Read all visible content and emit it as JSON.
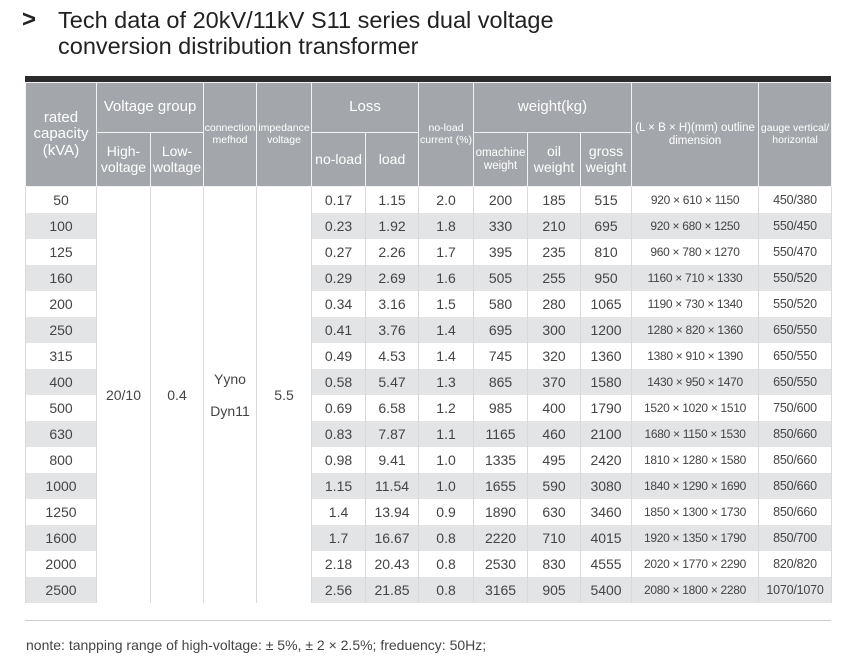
{
  "title": {
    "chevron": ">",
    "line1": "Tech data of 20kV/11kV S11 series dual voltage",
    "line2": "conversion distribution transformer"
  },
  "header": {
    "rated_capacity": "rated capacity (kVA)",
    "voltage_group": "Voltage group",
    "high_voltage": "High-voltage",
    "low_voltage": "Low-woltage",
    "connection_method": "connection mefhod",
    "impedance_voltage": "impedance voltage",
    "loss": "Loss",
    "no_load": "no-load",
    "load": "load",
    "no_load_current": "no-load current (%)",
    "weight": "weight(kg)",
    "machine_weight": "omachine weight",
    "oil_weight": "oil weight",
    "gross_weight": "gross weight",
    "outline_dimension": "(L × B × H)(mm) outline dimension",
    "gauge": "gauge vertical/ horizontal"
  },
  "merged": {
    "high_voltage": "20/10",
    "low_voltage": "0.4",
    "connection_1": "Yyno",
    "connection_2": "Dyn11",
    "impedance": "5.5"
  },
  "rows": [
    {
      "cap": "50",
      "nl": "0.17",
      "ld": "1.15",
      "cur": "2.0",
      "mw": "200",
      "ow": "185",
      "gw": "515",
      "dim": "920 × 610 × 1150",
      "gauge": "450/380"
    },
    {
      "cap": "100",
      "nl": "0.23",
      "ld": "1.92",
      "cur": "1.8",
      "mw": "330",
      "ow": "210",
      "gw": "695",
      "dim": "920 × 680 × 1250",
      "gauge": "550/450"
    },
    {
      "cap": "125",
      "nl": "0.27",
      "ld": "2.26",
      "cur": "1.7",
      "mw": "395",
      "ow": "235",
      "gw": "810",
      "dim": "960 × 780 × 1270",
      "gauge": "550/470"
    },
    {
      "cap": "160",
      "nl": "0.29",
      "ld": "2.69",
      "cur": "1.6",
      "mw": "505",
      "ow": "255",
      "gw": "950",
      "dim": "1160 × 710 × 1330",
      "gauge": "550/520"
    },
    {
      "cap": "200",
      "nl": "0.34",
      "ld": "3.16",
      "cur": "1.5",
      "mw": "580",
      "ow": "280",
      "gw": "1065",
      "dim": "1190 × 730 × 1340",
      "gauge": "550/520"
    },
    {
      "cap": "250",
      "nl": "0.41",
      "ld": "3.76",
      "cur": "1.4",
      "mw": "695",
      "ow": "300",
      "gw": "1200",
      "dim": "1280 × 820 × 1360",
      "gauge": "650/550"
    },
    {
      "cap": "315",
      "nl": "0.49",
      "ld": "4.53",
      "cur": "1.4",
      "mw": "745",
      "ow": "320",
      "gw": "1360",
      "dim": "1380 × 910 × 1390",
      "gauge": "650/550"
    },
    {
      "cap": "400",
      "nl": "0.58",
      "ld": "5.47",
      "cur": "1.3",
      "mw": "865",
      "ow": "370",
      "gw": "1580",
      "dim": "1430 × 950 × 1470",
      "gauge": "650/550"
    },
    {
      "cap": "500",
      "nl": "0.69",
      "ld": "6.58",
      "cur": "1.2",
      "mw": "985",
      "ow": "400",
      "gw": "1790",
      "dim": "1520 × 1020 × 1510",
      "gauge": "750/600"
    },
    {
      "cap": "630",
      "nl": "0.83",
      "ld": "7.87",
      "cur": "1.1",
      "mw": "1165",
      "ow": "460",
      "gw": "2100",
      "dim": "1680 × 1150 × 1530",
      "gauge": "850/660"
    },
    {
      "cap": "800",
      "nl": "0.98",
      "ld": "9.41",
      "cur": "1.0",
      "mw": "1335",
      "ow": "495",
      "gw": "2420",
      "dim": "1810 × 1280 × 1580",
      "gauge": "850/660"
    },
    {
      "cap": "1000",
      "nl": "1.15",
      "ld": "11.54",
      "cur": "1.0",
      "mw": "1655",
      "ow": "590",
      "gw": "3080",
      "dim": "1840 × 1290 × 1690",
      "gauge": "850/660"
    },
    {
      "cap": "1250",
      "nl": "1.4",
      "ld": "13.94",
      "cur": "0.9",
      "mw": "1890",
      "ow": "630",
      "gw": "3460",
      "dim": "1850 × 1300 × 1730",
      "gauge": "850/660"
    },
    {
      "cap": "1600",
      "nl": "1.7",
      "ld": "16.67",
      "cur": "0.8",
      "mw": "2220",
      "ow": "710",
      "gw": "4015",
      "dim": "1920 × 1350 × 1790",
      "gauge": "850/700"
    },
    {
      "cap": "2000",
      "nl": "2.18",
      "ld": "20.43",
      "cur": "0.8",
      "mw": "2530",
      "ow": "830",
      "gw": "4555",
      "dim": "2020 × 1770 × 2290",
      "gauge": "820/820"
    },
    {
      "cap": "2500",
      "nl": "2.56",
      "ld": "21.85",
      "cur": "0.8",
      "mw": "3165",
      "ow": "905",
      "gw": "5400",
      "dim": "2080 × 1800 × 2280",
      "gauge": "1070/1070"
    }
  ],
  "note": "nonte: tanpping range of high-voltage: ± 5%,  ± 2 × 2.5%; freduency: 50Hz;",
  "colors": {
    "header_bg": "#a3a7ab",
    "stripe_bg": "#e3e4e5",
    "top_rule": "#2b2b2b"
  }
}
